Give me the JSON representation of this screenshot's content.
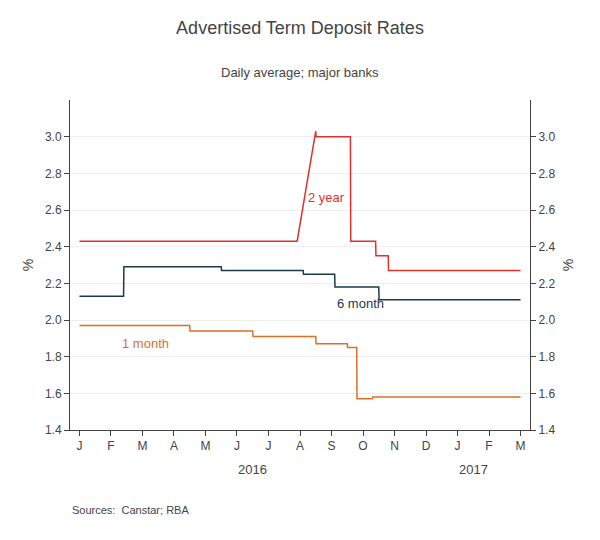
{
  "chart_data": {
    "type": "line",
    "title": "Advertised Term Deposit Rates",
    "subtitle": "Daily average; major banks",
    "ylabel": "%",
    "y2label": "%",
    "source": "Sources:  Canstar; RBA",
    "xlim": [
      -0.3,
      14.3
    ],
    "xticks": [
      {
        "value": 0,
        "label": "J"
      },
      {
        "value": 1,
        "label": "F"
      },
      {
        "value": 2,
        "label": "M"
      },
      {
        "value": 3,
        "label": "A"
      },
      {
        "value": 4,
        "label": "M"
      },
      {
        "value": 5,
        "label": "J"
      },
      {
        "value": 6,
        "label": "J"
      },
      {
        "value": 7,
        "label": "A"
      },
      {
        "value": 8,
        "label": "S"
      },
      {
        "value": 9,
        "label": "O"
      },
      {
        "value": 10,
        "label": "N"
      },
      {
        "value": 11,
        "label": "D"
      },
      {
        "value": 12,
        "label": "J"
      },
      {
        "value": 13,
        "label": "F"
      },
      {
        "value": 14,
        "label": "M"
      }
    ],
    "ylim": [
      1.4,
      3.2
    ],
    "yticks": [
      1.4,
      1.6,
      1.8,
      {
        "value": 2.0,
        "label": "2.0"
      },
      2.2,
      2.4,
      2.6,
      2.8,
      {
        "value": 3.0,
        "label": "3.0"
      }
    ],
    "y2lim": [
      1.4,
      3.2
    ],
    "y2ticks": [
      1.4,
      1.6,
      1.8,
      {
        "value": 2.0,
        "label": "2.0"
      },
      2.2,
      2.4,
      2.6,
      2.8,
      {
        "value": 3.0,
        "label": "3.0"
      }
    ],
    "grid": "y",
    "series": [
      {
        "name": "2 year",
        "color": "#e03030",
        "x": [
          0,
          6.9,
          6.91,
          7.5,
          7.51,
          8.6,
          8.61,
          9.4,
          9.41,
          9.8,
          9.81,
          10.5,
          10.6,
          11,
          12,
          13,
          14
        ],
        "values": [
          2.43,
          2.43,
          2.43,
          3.03,
          3.0,
          3.0,
          2.43,
          2.43,
          2.35,
          2.35,
          2.27,
          2.27,
          2.27,
          2.27,
          2.27,
          2.27,
          2.27
        ]
      },
      {
        "name": "6 month",
        "color": "#1a3a4a",
        "x": [
          0,
          1.4,
          1.41,
          4.5,
          4.51,
          7.1,
          7.11,
          8.1,
          8.11,
          9.0,
          9.01,
          9.5,
          9.51,
          14
        ],
        "values": [
          2.13,
          2.13,
          2.29,
          2.29,
          2.27,
          2.27,
          2.25,
          2.25,
          2.18,
          2.18,
          2.18,
          2.18,
          2.11,
          2.11
        ]
      },
      {
        "name": "1 month",
        "color": "#e07020",
        "x": [
          0,
          3.5,
          3.51,
          5.5,
          5.51,
          7.5,
          7.51,
          8.5,
          8.51,
          8.8,
          8.81,
          9.3,
          9.31,
          14
        ],
        "values": [
          1.97,
          1.97,
          1.94,
          1.94,
          1.91,
          1.91,
          1.87,
          1.87,
          1.85,
          1.85,
          1.57,
          1.57,
          1.58,
          1.58
        ]
      }
    ],
    "annotations": [
      {
        "text": "2 year",
        "x": 7.2,
        "y": 2.67,
        "color": "#e03030"
      },
      {
        "text": "6 month",
        "x": 8.1,
        "y": 2.09,
        "color": "#1a3a4a"
      },
      {
        "text": "1 month",
        "x": 1.3,
        "y": 1.87,
        "color": "#e07020"
      }
    ],
    "axis_annotations": [
      {
        "text": "2016",
        "x": 5.5
      },
      {
        "text": "2017",
        "x": 12.5
      }
    ]
  }
}
